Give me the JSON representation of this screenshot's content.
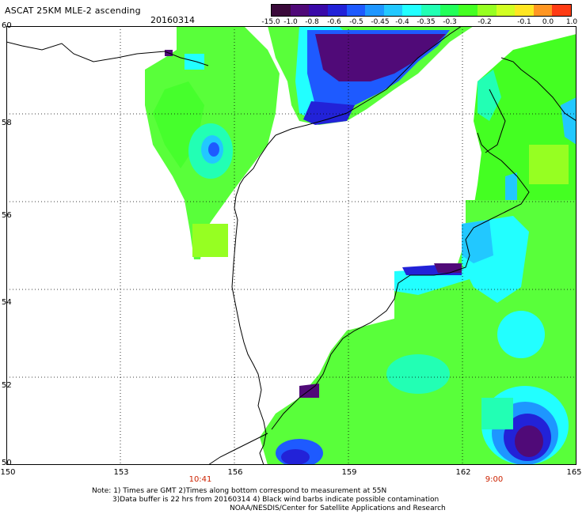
{
  "header": {
    "title": "ASCAT 25KM MLE-2 ascending",
    "date": "20160314"
  },
  "colorbar": {
    "colors": [
      "#3a0a3a",
      "#500a78",
      "#3a0aa8",
      "#2222d8",
      "#1e5aff",
      "#1e96ff",
      "#22c8ff",
      "#22ffff",
      "#22ffb4",
      "#22ff5a",
      "#44ff22",
      "#96ff22",
      "#d2ff22",
      "#ffe622",
      "#ff9622",
      "#ff3c14"
    ],
    "labels": [
      "-15.0",
      "-1.0",
      "-0.8",
      "-0.6",
      "-0.5",
      "-0.45",
      "-0.4",
      "-0.35",
      "-0.3",
      "-0.2",
      "-0.1",
      "0.0",
      "1.0"
    ]
  },
  "map": {
    "y_ticks": [
      "60",
      "58",
      "56",
      "54",
      "52",
      "50"
    ],
    "x_ticks": [
      "150",
      "153",
      "156",
      "159",
      "162",
      "165"
    ],
    "time_labels": [
      "10:41",
      "9:00"
    ],
    "lon_range": [
      150,
      165
    ],
    "lat_range": [
      50,
      60
    ]
  },
  "footer": {
    "note_line1": "Note: 1) Times are GMT 2)Times along bottom correspond to measurement at 55N",
    "note_line2": "3)Data buffer is 22 hrs from 20160314 4) Black wind barbs indicate possible contamination",
    "note_line3": "NOAA/NESDIS/Center for Satellite Applications and Research"
  }
}
